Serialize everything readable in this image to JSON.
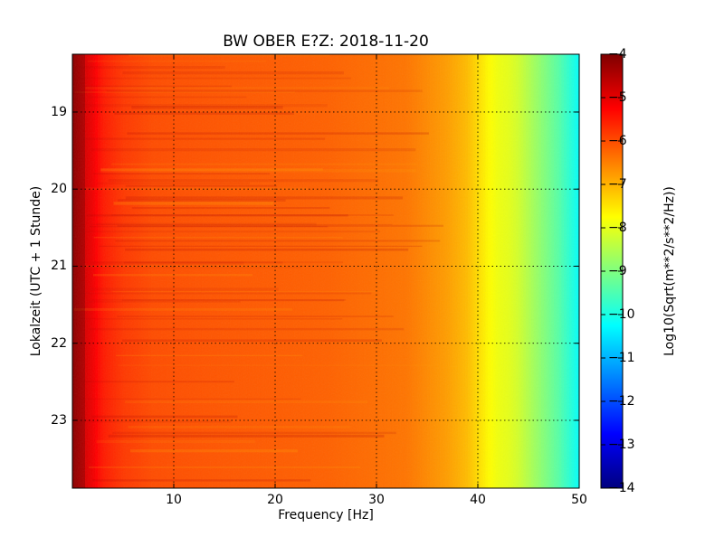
{
  "chart_data": {
    "type": "heatmap",
    "title": "BW OBER E?Z: 2018-11-20",
    "xlabel": "Frequency [Hz]",
    "ylabel": "Lokalzeit (UTC + 1 Stunde)",
    "xlim": [
      0,
      50
    ],
    "ylim_hours": [
      18.25,
      23.88
    ],
    "y_inverted": true,
    "x_ticks": [
      10,
      20,
      30,
      40,
      50
    ],
    "y_ticks": [
      19,
      20,
      21,
      22,
      23
    ],
    "grid": true,
    "colormap": "jet",
    "colorbar": {
      "label": "Log10(Sqrt(m**2/s**2/Hz))",
      "range": [
        -14,
        -4
      ],
      "ticks": [
        -4,
        -5,
        -6,
        -7,
        -8,
        -9,
        -10,
        -11,
        -12,
        -13,
        -14
      ]
    },
    "profile": {
      "frequency_hz": [
        0,
        1,
        2,
        3,
        5,
        8,
        15,
        25,
        33,
        37,
        39,
        40,
        41,
        42,
        43,
        44,
        45,
        46,
        47,
        48,
        49,
        50
      ],
      "level": [
        -4.3,
        -4.8,
        -5.1,
        -5.5,
        -5.8,
        -6.0,
        -6.1,
        -6.2,
        -6.4,
        -6.8,
        -7.1,
        -7.4,
        -7.7,
        -7.9,
        -8.0,
        -8.2,
        -8.5,
        -8.8,
        -9.1,
        -9.4,
        -9.8,
        -10.2
      ]
    }
  }
}
